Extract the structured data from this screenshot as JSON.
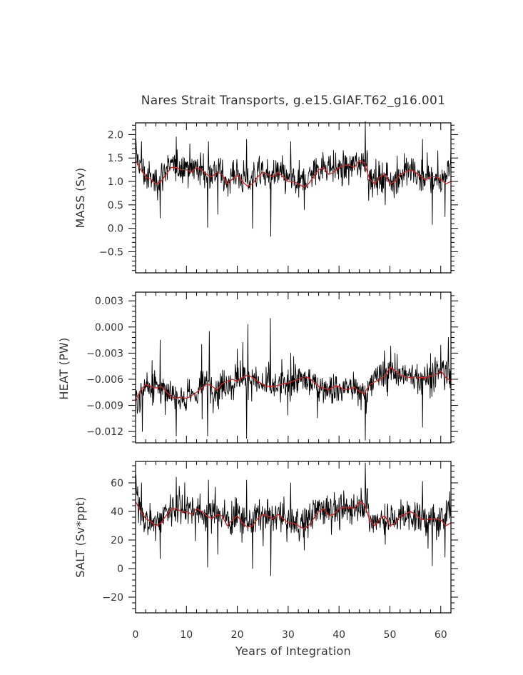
{
  "figure": {
    "title": "Nares Strait Transports, g.e15.GIAF.T62_g16.001",
    "xlabel": "Years of Integration",
    "colors": {
      "raw": "#000000",
      "smooth": "#e02020",
      "frame": "#000000",
      "text": "#333333"
    }
  },
  "chart_data": [
    {
      "type": "line",
      "panel": "mass",
      "title": "Nares Strait Transports, g.e15.GIAF.T62_g16.001",
      "ylabel": "MASS (Sv)",
      "xlabel": "",
      "xlim": [
        0,
        62
      ],
      "ylim": [
        -0.95,
        2.25
      ],
      "yticks": [
        -0.5,
        0.0,
        0.5,
        1.0,
        1.5,
        2.0
      ],
      "ytick_labels": [
        "−0.5",
        "0.0",
        "0.5",
        "1.0",
        "1.5",
        "2.0"
      ],
      "xticks": [
        0,
        10,
        20,
        30,
        40,
        50,
        60
      ],
      "series": [
        {
          "color": "#000000",
          "style": "monthly",
          "x": [
            0,
            2,
            4,
            5,
            6,
            8,
            10,
            12,
            14,
            16,
            18,
            20,
            22,
            24,
            26,
            28,
            30,
            32,
            34,
            36,
            38,
            40,
            42,
            44,
            45.5,
            46,
            48,
            50,
            52,
            54,
            56,
            58,
            60,
            62
          ],
          "y": [
            1.6,
            1.1,
            1.0,
            1.1,
            1.3,
            1.3,
            1.35,
            1.3,
            1.2,
            1.25,
            1.05,
            1.15,
            1.0,
            1.2,
            1.1,
            1.15,
            1.05,
            0.95,
            1.1,
            1.3,
            1.35,
            1.25,
            1.3,
            1.4,
            1.5,
            1.0,
            1.1,
            1.05,
            1.15,
            1.2,
            1.1,
            1.05,
            1.0,
            1.4
          ],
          "spikes_high": [
            [
              1.2,
              1.85
            ],
            [
              8.0,
              1.95
            ],
            [
              14.3,
              1.85
            ],
            [
              21.8,
              1.9
            ],
            [
              30.5,
              1.85
            ],
            [
              45.2,
              2.28
            ],
            [
              56.4,
              1.9
            ]
          ],
          "spikes_low": [
            [
              4.8,
              0.22
            ],
            [
              14.2,
              0.02
            ],
            [
              16.2,
              0.3
            ],
            [
              23.0,
              0.0
            ],
            [
              26.6,
              -0.17
            ],
            [
              33.2,
              0.4
            ],
            [
              49.1,
              0.5
            ],
            [
              58.3,
              0.08
            ],
            [
              60.8,
              0.25
            ]
          ]
        },
        {
          "color": "#e02020",
          "style": "smoothed",
          "x": [
            0,
            1,
            2,
            3,
            4,
            5,
            6,
            7,
            8,
            9,
            10,
            11,
            12,
            13,
            14,
            15,
            16,
            17,
            18,
            19,
            20,
            21,
            22,
            23,
            24,
            25,
            26,
            27,
            28,
            29,
            30,
            31,
            32,
            33,
            34,
            35,
            36,
            37,
            38,
            39,
            40,
            41,
            42,
            43,
            44,
            45,
            46,
            47,
            48,
            49,
            50,
            51,
            52,
            53,
            54,
            55,
            56,
            57,
            58,
            59,
            60,
            61,
            62
          ],
          "y": [
            1.45,
            1.25,
            1.1,
            1.05,
            0.95,
            1.0,
            1.15,
            1.3,
            1.3,
            1.25,
            1.25,
            1.2,
            1.3,
            1.25,
            1.15,
            1.1,
            1.2,
            1.15,
            0.95,
            1.05,
            1.15,
            1.0,
            0.9,
            0.95,
            1.1,
            1.2,
            1.15,
            1.1,
            1.2,
            1.1,
            1.0,
            1.0,
            0.95,
            0.88,
            0.95,
            1.1,
            1.25,
            1.3,
            1.15,
            1.2,
            1.3,
            1.35,
            1.35,
            1.3,
            1.45,
            1.4,
            1.05,
            0.95,
            1.1,
            1.15,
            0.95,
            1.0,
            1.15,
            1.2,
            1.25,
            1.2,
            1.1,
            1.05,
            1.1,
            1.1,
            1.05,
            0.95,
            1.0
          ]
        }
      ]
    },
    {
      "type": "line",
      "panel": "heat",
      "ylabel": "HEAT (PW)",
      "xlabel": "",
      "xlim": [
        0,
        62
      ],
      "ylim": [
        -0.0133,
        0.004
      ],
      "yticks": [
        -0.012,
        -0.009,
        -0.006,
        -0.003,
        0.0,
        0.003
      ],
      "ytick_labels": [
        "−0.012",
        "−0.009",
        "−0.006",
        "−0.003",
        "0.000",
        "0.003"
      ],
      "xticks": [
        0,
        10,
        20,
        30,
        40,
        50,
        60
      ],
      "series": [
        {
          "color": "#000000",
          "style": "monthly",
          "x": [
            0,
            2,
            4,
            5,
            6,
            8,
            10,
            12,
            14,
            16,
            18,
            20,
            22,
            24,
            26,
            28,
            30,
            32,
            34,
            36,
            38,
            40,
            42,
            44,
            45.5,
            46,
            48,
            50,
            52,
            54,
            56,
            58,
            60,
            62
          ],
          "y": [
            -0.0085,
            -0.0065,
            -0.0068,
            -0.007,
            -0.008,
            -0.0078,
            -0.0082,
            -0.0075,
            -0.0065,
            -0.0072,
            -0.0062,
            -0.006,
            -0.0058,
            -0.0065,
            -0.007,
            -0.0068,
            -0.0066,
            -0.006,
            -0.0062,
            -0.0068,
            -0.007,
            -0.0072,
            -0.0068,
            -0.0075,
            -0.0078,
            -0.0062,
            -0.006,
            -0.0048,
            -0.0055,
            -0.0058,
            -0.0058,
            -0.0056,
            -0.005,
            -0.006
          ],
          "spikes_high": [
            [
              4.8,
              -0.0015
            ],
            [
              13.0,
              -0.002
            ],
            [
              14.5,
              -0.0005
            ],
            [
              22.1,
              0.0003
            ],
            [
              26.5,
              0.001
            ],
            [
              30.5,
              -0.003
            ],
            [
              51.0,
              -0.003
            ],
            [
              61.5,
              -0.0012
            ]
          ],
          "spikes_low": [
            [
              1.3,
              -0.012
            ],
            [
              8.0,
              -0.0125
            ],
            [
              14.2,
              -0.0125
            ],
            [
              21.8,
              -0.0128
            ],
            [
              45.2,
              -0.013
            ],
            [
              56.4,
              -0.0115
            ]
          ]
        },
        {
          "color": "#e02020",
          "style": "smoothed",
          "x": [
            0,
            1,
            2,
            3,
            4,
            5,
            6,
            7,
            8,
            9,
            10,
            11,
            12,
            13,
            14,
            15,
            16,
            17,
            18,
            19,
            20,
            21,
            22,
            23,
            24,
            25,
            26,
            27,
            28,
            29,
            30,
            31,
            32,
            33,
            34,
            35,
            36,
            37,
            38,
            39,
            40,
            41,
            42,
            43,
            44,
            45,
            46,
            47,
            48,
            49,
            50,
            51,
            52,
            53,
            54,
            55,
            56,
            57,
            58,
            59,
            60,
            61,
            62
          ],
          "y": [
            -0.0085,
            -0.0072,
            -0.0066,
            -0.0068,
            -0.007,
            -0.0068,
            -0.0074,
            -0.008,
            -0.0082,
            -0.008,
            -0.0082,
            -0.0079,
            -0.0075,
            -0.007,
            -0.0065,
            -0.0068,
            -0.0072,
            -0.0065,
            -0.0062,
            -0.006,
            -0.0062,
            -0.0058,
            -0.0055,
            -0.0058,
            -0.0062,
            -0.0066,
            -0.0068,
            -0.0068,
            -0.0067,
            -0.0065,
            -0.0064,
            -0.0062,
            -0.006,
            -0.0057,
            -0.0058,
            -0.0063,
            -0.0068,
            -0.007,
            -0.0072,
            -0.0068,
            -0.0068,
            -0.0072,
            -0.0071,
            -0.0069,
            -0.0074,
            -0.0076,
            -0.0066,
            -0.0063,
            -0.006,
            -0.0056,
            -0.0046,
            -0.005,
            -0.0055,
            -0.0057,
            -0.0058,
            -0.0057,
            -0.0058,
            -0.0058,
            -0.0056,
            -0.0055,
            -0.005,
            -0.0058,
            -0.0062
          ]
        }
      ]
    },
    {
      "type": "line",
      "panel": "salt",
      "ylabel": "SALT (Sv*ppt)",
      "xlabel": "Years of Integration",
      "xlim": [
        0,
        62
      ],
      "ylim": [
        -31,
        75
      ],
      "yticks": [
        -20,
        0,
        20,
        40,
        60
      ],
      "ytick_labels": [
        "−20",
        "0",
        "20",
        "40",
        "60"
      ],
      "xticks": [
        0,
        10,
        20,
        30,
        40,
        50,
        60
      ],
      "xtick_labels": [
        "0",
        "10",
        "20",
        "30",
        "40",
        "50",
        "60"
      ],
      "series": [
        {
          "color": "#000000",
          "style": "monthly",
          "x": [
            0,
            2,
            4,
            5,
            6,
            8,
            10,
            12,
            14,
            16,
            18,
            20,
            22,
            24,
            26,
            28,
            30,
            32,
            34,
            36,
            38,
            40,
            42,
            44,
            45.5,
            46,
            48,
            50,
            52,
            54,
            56,
            58,
            60,
            62
          ],
          "y": [
            52,
            34,
            32,
            35,
            41,
            42,
            43,
            41,
            38,
            40,
            34,
            37,
            32,
            38,
            35,
            37,
            34,
            31,
            35,
            42,
            43,
            40,
            42,
            45,
            48,
            32,
            35,
            34,
            37,
            38,
            35,
            34,
            32,
            44
          ],
          "spikes_high": [
            [
              1.2,
              60
            ],
            [
              8.0,
              64
            ],
            [
              14.3,
              62
            ],
            [
              21.8,
              62
            ],
            [
              30.5,
              60
            ],
            [
              45.2,
              74
            ],
            [
              56.4,
              61
            ]
          ],
          "spikes_low": [
            [
              4.8,
              7
            ],
            [
              14.2,
              1
            ],
            [
              16.2,
              10
            ],
            [
              23.0,
              0
            ],
            [
              26.6,
              -5
            ],
            [
              33.2,
              13
            ],
            [
              49.1,
              17
            ],
            [
              58.3,
              2
            ],
            [
              60.8,
              8
            ]
          ]
        },
        {
          "color": "#e02020",
          "style": "smoothed",
          "x": [
            0,
            1,
            2,
            3,
            4,
            5,
            6,
            7,
            8,
            9,
            10,
            11,
            12,
            13,
            14,
            15,
            16,
            17,
            18,
            19,
            20,
            21,
            22,
            23,
            24,
            25,
            26,
            27,
            28,
            29,
            30,
            31,
            32,
            33,
            34,
            35,
            36,
            37,
            38,
            39,
            40,
            41,
            42,
            43,
            44,
            45,
            46,
            47,
            48,
            49,
            50,
            51,
            52,
            53,
            54,
            55,
            56,
            57,
            58,
            59,
            60,
            61,
            62
          ],
          "y": [
            47,
            40,
            35,
            33,
            30,
            32,
            37,
            42,
            42,
            40,
            40,
            38,
            42,
            40,
            37,
            35,
            38,
            37,
            30,
            34,
            37,
            32,
            29,
            30,
            35,
            38,
            37,
            35,
            38,
            35,
            32,
            32,
            30,
            28,
            30,
            35,
            40,
            42,
            37,
            38,
            42,
            43,
            43,
            42,
            47,
            45,
            34,
            30,
            35,
            37,
            30,
            32,
            37,
            38,
            40,
            38,
            35,
            34,
            35,
            35,
            34,
            30,
            32
          ]
        }
      ]
    }
  ]
}
